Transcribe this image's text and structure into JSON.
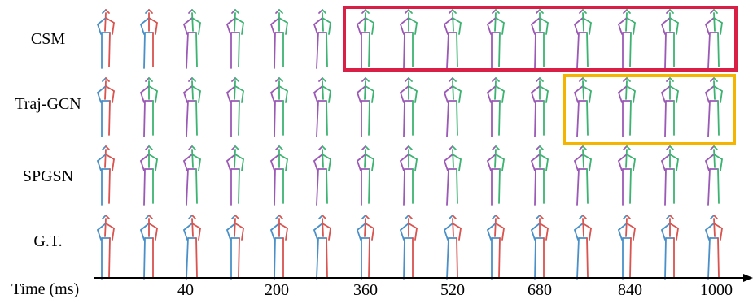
{
  "rows": [
    {
      "label": "CSM"
    },
    {
      "label": "Traj-GCN"
    },
    {
      "label": "SPGSN"
    },
    {
      "label": "G.T."
    }
  ],
  "axis": {
    "title": "Time (ms)",
    "ticks": [
      "40",
      "200",
      "360",
      "520",
      "680",
      "840",
      "1000"
    ]
  },
  "colors": {
    "limb_blue": "#4a90c8",
    "limb_red": "#d9534f",
    "limb_green": "#3cb371",
    "limb_purple": "#9b59b6",
    "highlight_red": "#d91f45",
    "highlight_yellow": "#f4b400"
  }
}
